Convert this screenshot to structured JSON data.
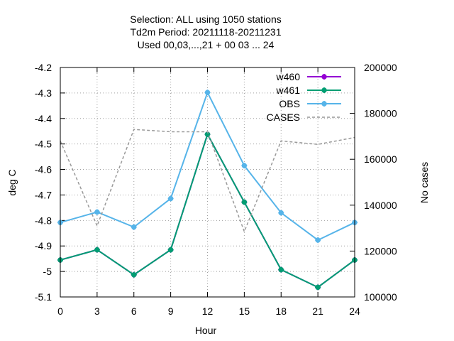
{
  "chart_data": {
    "type": "line",
    "title_lines": [
      "Selection: ALL using  1050 stations",
      "Td2m   Period: 20211118-20211231",
      "Used  00,03,...,21  + 00 03 ... 24"
    ],
    "xlabel": "Hour",
    "ylabel": "deg C",
    "y2label": "No cases",
    "x": [
      0,
      3,
      6,
      9,
      12,
      15,
      18,
      21,
      24
    ],
    "xlim": [
      0,
      24
    ],
    "xticks": [
      0,
      3,
      6,
      9,
      12,
      15,
      18,
      21,
      24
    ],
    "ylim": [
      -5.1,
      -4.2
    ],
    "yticks": [
      -5.1,
      -5.0,
      -4.9,
      -4.8,
      -4.7,
      -4.6,
      -4.5,
      -4.4,
      -4.3,
      -4.2
    ],
    "ytick_labels": [
      "-5.1",
      "-5",
      "-4.9",
      "-4.8",
      "-4.7",
      "-4.6",
      "-4.5",
      "-4.4",
      "-4.3",
      "-4.2"
    ],
    "y2lim": [
      100000,
      200000
    ],
    "y2ticks": [
      100000,
      120000,
      140000,
      160000,
      180000,
      200000
    ],
    "y2tick_labels": [
      "100000",
      "120000",
      "140000",
      "160000",
      "180000",
      "200000"
    ],
    "grid": true,
    "legend_position": "top-right",
    "series": [
      {
        "name": "w460",
        "axis": "y1",
        "color": "#9400d3",
        "dash": false,
        "marker": true,
        "values": [
          -4.955,
          -4.915,
          -5.013,
          -4.915,
          -4.462,
          -4.728,
          -4.993,
          -5.062,
          -4.955
        ]
      },
      {
        "name": "w461",
        "axis": "y1",
        "color": "#009e73",
        "dash": false,
        "marker": true,
        "values": [
          -4.955,
          -4.915,
          -5.013,
          -4.915,
          -4.462,
          -4.728,
          -4.993,
          -5.062,
          -4.955
        ]
      },
      {
        "name": "OBS",
        "axis": "y1",
        "color": "#56b4e9",
        "dash": false,
        "marker": true,
        "values": [
          -4.808,
          -4.767,
          -4.826,
          -4.714,
          -4.298,
          -4.585,
          -4.77,
          -4.877,
          -4.808
        ]
      },
      {
        "name": "CASES",
        "axis": "y2",
        "color": "#999999",
        "dash": true,
        "marker": false,
        "values": [
          168000,
          131000,
          173000,
          172000,
          172000,
          128500,
          168000,
          166500,
          169500
        ]
      }
    ]
  }
}
